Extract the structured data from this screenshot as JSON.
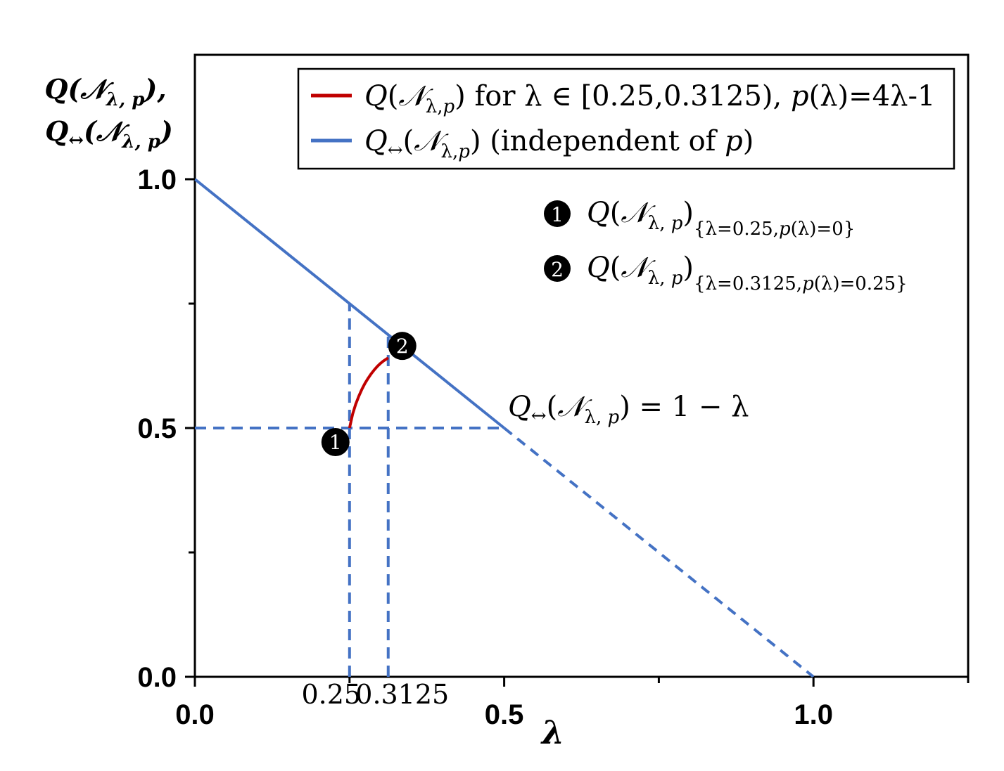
{
  "chart_data": {
    "type": "line",
    "xlabel": "λ",
    "ylabel_line1": "Q(𝒩λ, p),",
    "ylabel_line2": "Q↔(𝒩λ, p)",
    "xlim": [
      0.0,
      1.25
    ],
    "ylim": [
      0.0,
      1.25
    ],
    "x_ticks": [
      {
        "value": 0.0,
        "label": "0.0"
      },
      {
        "value": 0.5,
        "label": "0.5"
      },
      {
        "value": 1.0,
        "label": "1.0"
      }
    ],
    "x_minor_ticks": [
      0.25,
      0.75,
      1.25
    ],
    "y_ticks": [
      {
        "value": 0.0,
        "label": "0.0"
      },
      {
        "value": 0.5,
        "label": "0.5"
      },
      {
        "value": 1.0,
        "label": "1.0"
      }
    ],
    "y_minor_ticks": [
      0.25,
      0.75
    ],
    "extra_x_labels": [
      {
        "value": 0.25,
        "label": "0.25"
      },
      {
        "value": 0.3125,
        "label": "0.3125"
      }
    ],
    "legend": {
      "position": "top",
      "entries": [
        {
          "label": "Q(𝒩λ,p) for λ ∈ [0.25,0.3125), p(λ)=4λ-1",
          "color": "#c00000"
        },
        {
          "label": "Q↔(𝒩λ,p) (independent of p)",
          "color": "#4472c4"
        }
      ]
    },
    "series": [
      {
        "label_id": "red",
        "color": "#c00000",
        "style": "solid",
        "x": [
          0.25,
          0.255,
          0.26,
          0.265,
          0.27,
          0.275,
          0.28,
          0.285,
          0.29,
          0.295,
          0.3,
          0.305,
          0.3125
        ],
        "y": [
          0.5,
          0.528,
          0.548,
          0.564,
          0.578,
          0.59,
          0.6,
          0.609,
          0.617,
          0.624,
          0.63,
          0.635,
          0.641
        ]
      },
      {
        "label_id": "blue-solid",
        "color": "#4472c4",
        "style": "solid",
        "x": [
          0.0,
          0.5
        ],
        "y": [
          1.0,
          0.5
        ]
      },
      {
        "label_id": "blue-dashed",
        "color": "#4472c4",
        "style": "dashed",
        "x": [
          0.5,
          1.0
        ],
        "y": [
          0.5,
          0.0
        ]
      }
    ],
    "guide_lines": [
      {
        "x1": 0.0,
        "y1": 0.5,
        "x2": 0.5,
        "y2": 0.5
      },
      {
        "x1": 0.25,
        "y1": 0.0,
        "x2": 0.25,
        "y2": 0.75
      },
      {
        "x1": 0.3125,
        "y1": 0.0,
        "x2": 0.3125,
        "y2": 0.6875
      }
    ],
    "markers": [
      {
        "id": "1",
        "x": 0.25,
        "y": 0.5
      },
      {
        "id": "2",
        "x": 0.3125,
        "y": 0.641
      }
    ],
    "annotations": {
      "line_equation": "Q↔(𝒩λ, p) = 1 − λ",
      "marker1_text": "Q(𝒩λ, p){λ=0.25,p(λ)=0}",
      "marker2_text": "Q(𝒩λ, p){λ=0.3125,p(λ)=0.25}"
    }
  }
}
